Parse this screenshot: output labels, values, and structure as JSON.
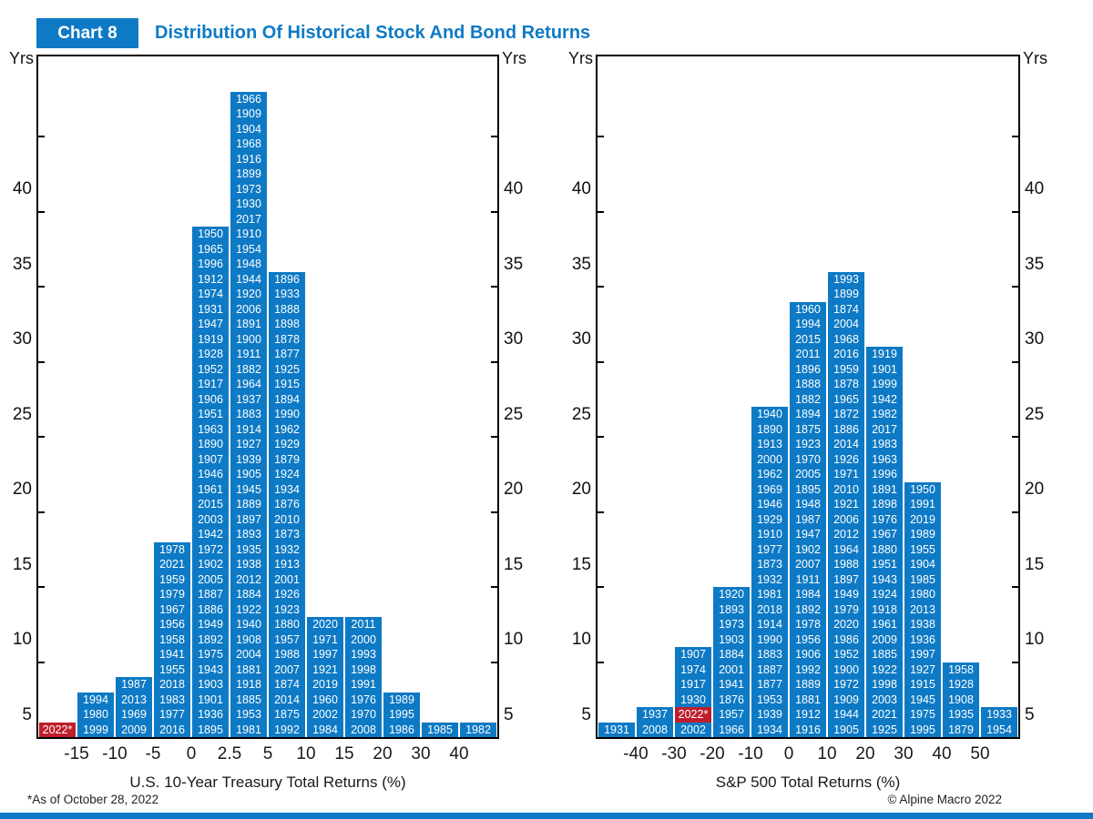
{
  "header": {
    "tag": "Chart 8",
    "title": "Distribution Of Historical Stock And Bond Returns"
  },
  "footer": {
    "note": "*As of October 28, 2022",
    "copyright": "© Alpine Macro 2022"
  },
  "colors": {
    "blue": "#0e7ac5",
    "red": "#bf1e2d"
  },
  "chart_data": [
    {
      "type": "bar",
      "xlabel": "U.S. 10-Year Treasury Total Returns (%)",
      "ylabel": "Yrs",
      "ylim": [
        0,
        45
      ],
      "yticks": [
        5,
        10,
        15,
        20,
        25,
        30,
        35,
        40
      ],
      "bin_labels": [
        "-15",
        "-10",
        "-5",
        "0",
        "2.5",
        "5",
        "10",
        "15",
        "20",
        "30",
        "40"
      ],
      "bars": [
        {
          "count": 1,
          "red": [
            0
          ],
          "years": [
            "2022*"
          ]
        },
        {
          "count": 3,
          "years": [
            "1994",
            "1980",
            "1999"
          ]
        },
        {
          "count": 4,
          "years": [
            "1987",
            "2013",
            "1969",
            "2009"
          ]
        },
        {
          "count": 13,
          "years": [
            "1978",
            "2021",
            "1959",
            "1979",
            "1967",
            "1956",
            "1958",
            "1941",
            "1955",
            "2018",
            "1983",
            "1977",
            "2016"
          ]
        },
        {
          "count": 34,
          "years": [
            "1950",
            "1965",
            "1996",
            "1912",
            "1974",
            "1931",
            "1947",
            "1919",
            "1928",
            "1952",
            "1917",
            "1906",
            "1951",
            "1963",
            "1890",
            "1907",
            "1946",
            "1961",
            "2015",
            "2003",
            "1942",
            "1972",
            "1902",
            "2005",
            "1887",
            "1886",
            "1949",
            "1892",
            "1975",
            "1943",
            "1903",
            "1901",
            "1936",
            "1895"
          ]
        },
        {
          "count": 43,
          "years": [
            "1966",
            "1909",
            "1904",
            "1968",
            "1916",
            "1899",
            "1973",
            "1930",
            "2017",
            "1910",
            "1954",
            "1948",
            "1944",
            "1920",
            "2006",
            "1891",
            "1900",
            "1911",
            "1882",
            "1964",
            "1937",
            "1883",
            "1914",
            "1927",
            "1939",
            "1905",
            "1945",
            "1889",
            "1897",
            "1893",
            "1935",
            "1938",
            "2012",
            "1884",
            "1922",
            "1940",
            "1908",
            "2004",
            "1881",
            "1918",
            "1885",
            "1953",
            "1981"
          ]
        },
        {
          "count": 31,
          "years": [
            "1896",
            "1933",
            "1888",
            "1898",
            "1878",
            "1877",
            "1925",
            "1915",
            "1894",
            "1990",
            "1962",
            "1929",
            "1879",
            "1924",
            "1934",
            "1876",
            "2010",
            "1873",
            "1932",
            "1913",
            "2001",
            "1926",
            "1923",
            "1880",
            "1957",
            "1988",
            "2007",
            "1874",
            "2014",
            "1875",
            "1992"
          ]
        },
        {
          "count": 8,
          "years": [
            "2020",
            "1971",
            "1997",
            "1921",
            "2019",
            "1960",
            "2002",
            "1984"
          ]
        },
        {
          "count": 8,
          "years": [
            "2011",
            "2000",
            "1993",
            "1998",
            "1991",
            "1976",
            "1970",
            "2008"
          ]
        },
        {
          "count": 3,
          "years": [
            "1989",
            "1995",
            "1986"
          ]
        },
        {
          "count": 1,
          "years": [
            "1985"
          ]
        },
        {
          "count": 1,
          "years": [
            "1982"
          ]
        }
      ]
    },
    {
      "type": "bar",
      "xlabel": "S&P 500 Total Returns (%)",
      "ylabel": "Yrs",
      "ylim": [
        0,
        45
      ],
      "yticks": [
        5,
        10,
        15,
        20,
        25,
        30,
        35,
        40
      ],
      "bin_labels": [
        "-40",
        "-30",
        "-20",
        "-10",
        "0",
        "10",
        "20",
        "30",
        "40",
        "50"
      ],
      "bars": [
        {
          "count": 1,
          "years": [
            "1931"
          ]
        },
        {
          "count": 2,
          "years": [
            "1937",
            "2008"
          ]
        },
        {
          "count": 6,
          "red": [
            4
          ],
          "years": [
            "1907",
            "1974",
            "1917",
            "1930",
            "2022*",
            "2002"
          ]
        },
        {
          "count": 10,
          "years": [
            "1920",
            "1893",
            "1973",
            "1903",
            "1884",
            "2001",
            "1941",
            "1876",
            "1957",
            "1966"
          ]
        },
        {
          "count": 22,
          "years": [
            "1940",
            "1890",
            "1913",
            "2000",
            "1962",
            "1969",
            "1946",
            "1929",
            "1910",
            "1977",
            "1873",
            "1932",
            "1981",
            "2018",
            "1914",
            "1990",
            "1883",
            "1887",
            "1877",
            "1953",
            "1939",
            "1934"
          ]
        },
        {
          "count": 29,
          "years": [
            "1960",
            "1994",
            "2015",
            "2011",
            "1896",
            "1888",
            "1882",
            "1894",
            "1875",
            "1923",
            "1970",
            "2005",
            "1895",
            "1948",
            "1987",
            "1947",
            "1902",
            "2007",
            "1911",
            "1984",
            "1892",
            "1978",
            "1956",
            "1906",
            "1992",
            "1889",
            "1881",
            "1912",
            "1916"
          ]
        },
        {
          "count": 31,
          "years": [
            "1993",
            "1899",
            "1874",
            "2004",
            "1968",
            "2016",
            "1959",
            "1878",
            "1965",
            "1872",
            "1886",
            "2014",
            "1926",
            "1971",
            "2010",
            "1921",
            "2006",
            "2012",
            "1964",
            "1988",
            "1897",
            "1949",
            "1979",
            "2020",
            "1986",
            "1952",
            "1900",
            "1972",
            "1909",
            "1944",
            "1905"
          ]
        },
        {
          "count": 26,
          "years": [
            "1919",
            "1901",
            "1999",
            "1942",
            "1982",
            "2017",
            "1983",
            "1963",
            "1996",
            "1891",
            "1898",
            "1976",
            "1967",
            "1880",
            "1951",
            "1943",
            "1924",
            "1918",
            "1961",
            "2009",
            "1885",
            "1922",
            "1998",
            "2003",
            "2021",
            "1925"
          ]
        },
        {
          "count": 17,
          "years": [
            "1950",
            "1991",
            "2019",
            "1989",
            "1955",
            "1904",
            "1985",
            "1980",
            "2013",
            "1938",
            "1936",
            "1997",
            "1927",
            "1915",
            "1945",
            "1975",
            "1995"
          ]
        },
        {
          "count": 5,
          "years": [
            "1958",
            "1928",
            "1908",
            "1935",
            "1879"
          ]
        },
        {
          "count": 2,
          "years": [
            "1933",
            "1954"
          ]
        }
      ]
    }
  ]
}
